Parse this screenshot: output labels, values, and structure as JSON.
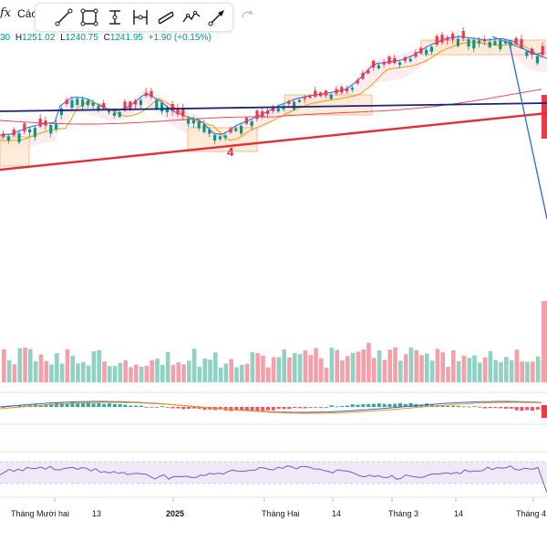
{
  "toolbar": {
    "fx_label": "ƒx",
    "indicators_label": "Các",
    "tools": [
      "trend-line-tool",
      "rectangle-tool",
      "horizontal-ray-tool",
      "price-range-tool",
      "parallel-channel-tool",
      "path-tool",
      "arrow-tool"
    ],
    "redo_icon": "redo-icon"
  },
  "legend": {
    "open_partial": "30",
    "high_label": "H",
    "high": "1251.02",
    "low_label": "L",
    "low": "1240.75",
    "close_label": "C",
    "close": "1241.95",
    "change": "+1.90 (+0.15%)"
  },
  "annotation": {
    "wave_label": "4"
  },
  "time_axis": {
    "labels": [
      "Tháng Mười hai",
      "13",
      "2025",
      "Tháng Hai",
      "14",
      "Tháng 3",
      "14",
      "Tháng 4"
    ]
  },
  "colors": {
    "up": "#089981",
    "down": "#f23645",
    "up_volume": "#8fd1c2",
    "down_volume": "#f5a0a8",
    "ema_fast": "#2962ff",
    "ema_slow": "#ff9800",
    "ma_long": "#f23645",
    "support_line": "#e0303a",
    "resistance_line": "#1a237e",
    "elliott_line": "#3f6ee0",
    "cloud": "#fbe4e6",
    "zone": "#fde9d4",
    "rsi": "#7e57c2",
    "rsi_band": "#ede7f6"
  }
}
